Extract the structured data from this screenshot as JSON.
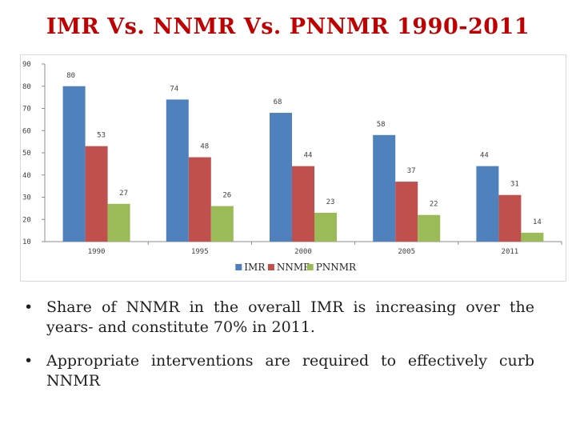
{
  "slide": {
    "title": "IMR Vs. NNMR Vs. PNNMR 1990-2011",
    "bullets": [
      "Share of NNMR in the overall IMR is increasing over the years- and constitute 70% in 2011.",
      "Appropriate interventions are required to  effectively curb NNMR"
    ]
  },
  "chart_data": {
    "type": "bar",
    "title": "",
    "xlabel": "",
    "ylabel": "",
    "ylim": [
      10,
      90
    ],
    "yticks": [
      10,
      20,
      30,
      40,
      50,
      60,
      70,
      80,
      90
    ],
    "categories": [
      "1990",
      "1995",
      "2000",
      "2005",
      "2011"
    ],
    "series": [
      {
        "name": "IMR",
        "color": "#4f81bd",
        "values": [
          80,
          74,
          68,
          58,
          44
        ]
      },
      {
        "name": "NNMR",
        "color": "#c0504d",
        "values": [
          53,
          48,
          44,
          37,
          31
        ]
      },
      {
        "name": "PNNMR",
        "color": "#9bbb59",
        "values": [
          27,
          26,
          23,
          22,
          14
        ]
      }
    ],
    "legend": "bottom",
    "grid": false
  }
}
